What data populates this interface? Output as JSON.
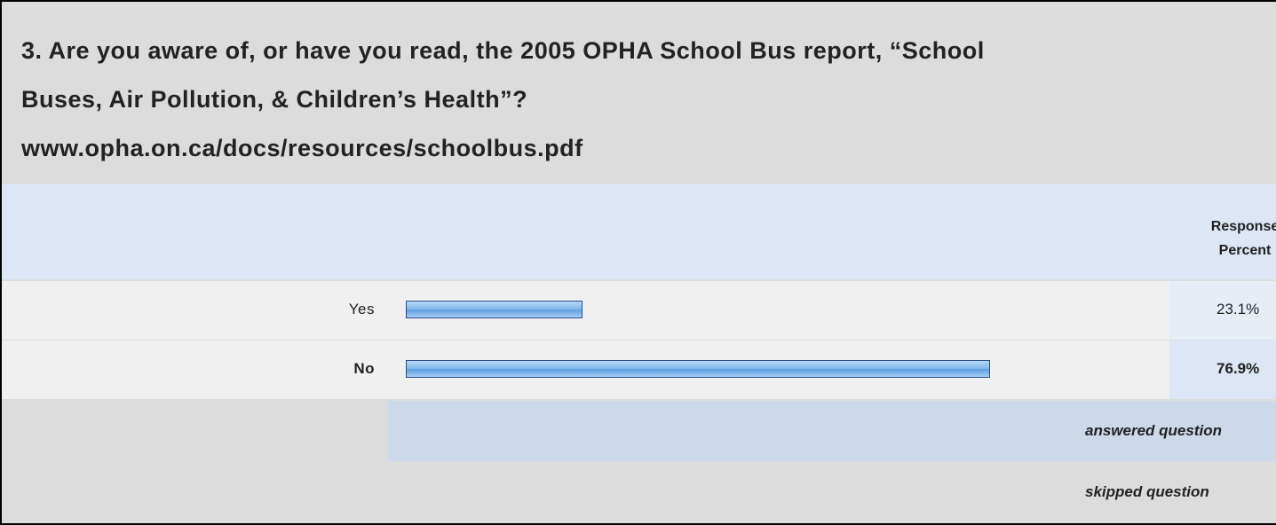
{
  "question": {
    "lines": [
      "3. Are you aware of, or have you read, the 2005 OPHA School Bus report, “School",
      "Buses, Air Pollution, & Children’s Health”?",
      "www.opha.on.ca/docs/resources/schoolbus.pdf"
    ]
  },
  "table": {
    "header": "Response Percent",
    "rows": [
      {
        "label": "Yes",
        "value": 23.1,
        "value_label": "23.1%"
      },
      {
        "label": "No",
        "value": 76.9,
        "value_label": "76.9%"
      }
    ],
    "answered": "answered question",
    "skipped": "skipped question"
  }
}
